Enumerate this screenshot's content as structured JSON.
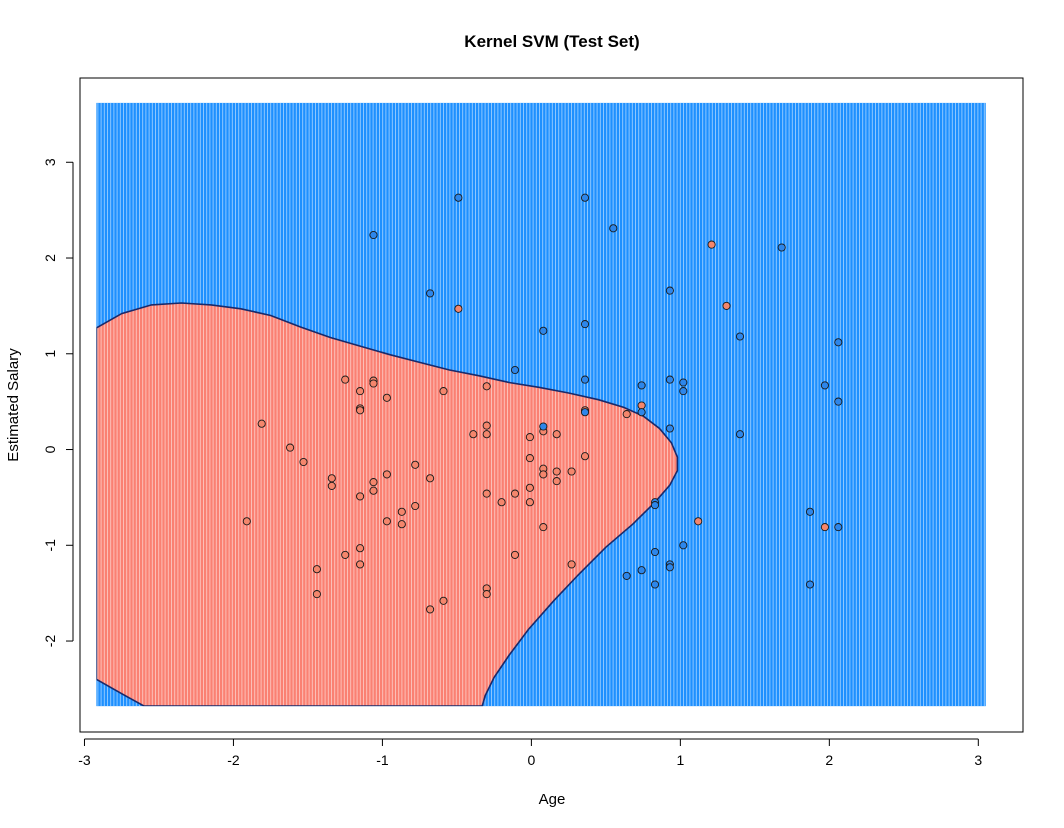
{
  "chart_data": {
    "type": "scatter",
    "title": "Kernel SVM (Test Set)",
    "xlabel": "Age",
    "ylabel": "Estimated Salary",
    "xlim": [
      -3.03,
      3.3
    ],
    "ylim": [
      -2.95,
      3.88
    ],
    "x_ticks": [
      -3,
      -2,
      -1,
      0,
      1,
      2,
      3
    ],
    "y_ticks": [
      -2,
      -1,
      0,
      1,
      2,
      3
    ],
    "grid": false,
    "legend": "none",
    "grid_extent": {
      "x": [
        -2.92,
        3.05
      ],
      "y": [
        -2.68,
        3.62
      ]
    },
    "colors": {
      "region_0": "#fa8072",
      "region_1": "#1e90ff",
      "point_0": "#f4866c",
      "point_1": "#2d86ea",
      "point_border": "#1a1a1a",
      "boundary": "#1a2a6a",
      "stripe": "#ffffff"
    },
    "decision_region_0_outline": [
      [
        -2.92,
        1.27
      ],
      [
        -2.75,
        1.42
      ],
      [
        -2.55,
        1.51
      ],
      [
        -2.35,
        1.53
      ],
      [
        -2.15,
        1.51
      ],
      [
        -1.95,
        1.47
      ],
      [
        -1.75,
        1.4
      ],
      [
        -1.55,
        1.28
      ],
      [
        -1.35,
        1.17
      ],
      [
        -1.15,
        1.08
      ],
      [
        -0.95,
        0.99
      ],
      [
        -0.75,
        0.91
      ],
      [
        -0.55,
        0.83
      ],
      [
        -0.35,
        0.77
      ],
      [
        -0.15,
        0.7
      ],
      [
        0.05,
        0.65
      ],
      [
        0.25,
        0.59
      ],
      [
        0.45,
        0.52
      ],
      [
        0.62,
        0.44
      ],
      [
        0.75,
        0.35
      ],
      [
        0.86,
        0.22
      ],
      [
        0.94,
        0.07
      ],
      [
        0.98,
        -0.08
      ],
      [
        0.98,
        -0.22
      ],
      [
        0.93,
        -0.37
      ],
      [
        0.83,
        -0.55
      ],
      [
        0.68,
        -0.78
      ],
      [
        0.5,
        -1.02
      ],
      [
        0.32,
        -1.3
      ],
      [
        0.15,
        -1.58
      ],
      [
        -0.02,
        -1.88
      ],
      [
        -0.15,
        -2.15
      ],
      [
        -0.25,
        -2.38
      ],
      [
        -0.31,
        -2.57
      ],
      [
        -0.33,
        -2.68
      ],
      [
        -2.6,
        -2.68
      ],
      [
        -2.75,
        -2.55
      ],
      [
        -2.92,
        -2.4
      ]
    ],
    "series": [
      {
        "class": 0,
        "points": [
          [
            -1.91,
            -0.75
          ],
          [
            -1.81,
            0.27
          ],
          [
            -1.62,
            0.02
          ],
          [
            -1.53,
            -0.13
          ],
          [
            -1.44,
            -1.25
          ],
          [
            -1.44,
            -1.51
          ],
          [
            -1.34,
            -0.3
          ],
          [
            -1.34,
            -0.38
          ],
          [
            -1.25,
            0.73
          ],
          [
            -1.25,
            -1.1
          ],
          [
            -1.15,
            0.61
          ],
          [
            -1.15,
            0.43
          ],
          [
            -1.15,
            0.41
          ],
          [
            -1.15,
            -0.49
          ],
          [
            -1.15,
            -1.03
          ],
          [
            -1.15,
            -1.2
          ],
          [
            -1.06,
            0.72
          ],
          [
            -1.06,
            0.69
          ],
          [
            -1.06,
            -0.34
          ],
          [
            -1.06,
            -0.43
          ],
          [
            -0.97,
            0.54
          ],
          [
            -0.97,
            -0.26
          ],
          [
            -0.97,
            -0.75
          ],
          [
            -0.87,
            -0.65
          ],
          [
            -0.87,
            -0.78
          ],
          [
            -0.78,
            -0.16
          ],
          [
            -0.78,
            -0.59
          ],
          [
            -0.68,
            -0.3
          ],
          [
            -0.68,
            -1.67
          ],
          [
            -0.59,
            0.61
          ],
          [
            -0.59,
            -1.58
          ],
          [
            -0.49,
            1.47
          ],
          [
            -0.39,
            0.16
          ],
          [
            -0.3,
            0.66
          ],
          [
            -0.3,
            0.25
          ],
          [
            -0.3,
            0.16
          ],
          [
            -0.3,
            -0.46
          ],
          [
            -0.3,
            -1.45
          ],
          [
            -0.3,
            -1.51
          ],
          [
            -0.2,
            -0.55
          ],
          [
            -0.11,
            -0.46
          ],
          [
            -0.11,
            -1.1
          ],
          [
            -0.01,
            0.13
          ],
          [
            -0.01,
            -0.09
          ],
          [
            -0.01,
            -0.4
          ],
          [
            -0.01,
            -0.55
          ],
          [
            0.08,
            0.19
          ],
          [
            0.08,
            -0.2
          ],
          [
            0.08,
            -0.26
          ],
          [
            0.08,
            -0.81
          ],
          [
            0.17,
            0.16
          ],
          [
            0.17,
            -0.23
          ],
          [
            0.17,
            -0.33
          ],
          [
            0.27,
            -0.23
          ],
          [
            0.27,
            -1.2
          ],
          [
            0.36,
            -0.07
          ],
          [
            0.36,
            0.41
          ],
          [
            0.64,
            0.37
          ],
          [
            0.74,
            0.46
          ],
          [
            1.12,
            -0.75
          ],
          [
            1.21,
            2.14
          ],
          [
            1.31,
            1.5
          ],
          [
            1.97,
            -0.81
          ]
        ]
      },
      {
        "class": 1,
        "points": [
          [
            -1.06,
            2.24
          ],
          [
            -0.68,
            1.63
          ],
          [
            -0.49,
            2.63
          ],
          [
            -0.11,
            0.83
          ],
          [
            0.08,
            0.24
          ],
          [
            0.08,
            1.24
          ],
          [
            0.36,
            2.63
          ],
          [
            0.36,
            1.31
          ],
          [
            0.36,
            0.73
          ],
          [
            0.36,
            0.39
          ],
          [
            0.55,
            2.31
          ],
          [
            0.64,
            -1.32
          ],
          [
            0.74,
            0.67
          ],
          [
            0.74,
            0.39
          ],
          [
            0.74,
            -1.26
          ],
          [
            0.83,
            -0.55
          ],
          [
            0.83,
            -0.58
          ],
          [
            0.83,
            -1.07
          ],
          [
            0.83,
            -1.41
          ],
          [
            0.93,
            1.66
          ],
          [
            0.93,
            0.73
          ],
          [
            0.93,
            0.22
          ],
          [
            0.93,
            -1.2
          ],
          [
            0.93,
            -1.23
          ],
          [
            1.02,
            0.7
          ],
          [
            1.02,
            0.61
          ],
          [
            1.02,
            -1.0
          ],
          [
            1.4,
            1.18
          ],
          [
            1.4,
            0.16
          ],
          [
            1.68,
            2.11
          ],
          [
            1.87,
            -0.65
          ],
          [
            1.87,
            -1.41
          ],
          [
            1.97,
            0.67
          ],
          [
            2.06,
            1.12
          ],
          [
            2.06,
            0.5
          ],
          [
            2.06,
            -0.81
          ]
        ]
      }
    ]
  }
}
